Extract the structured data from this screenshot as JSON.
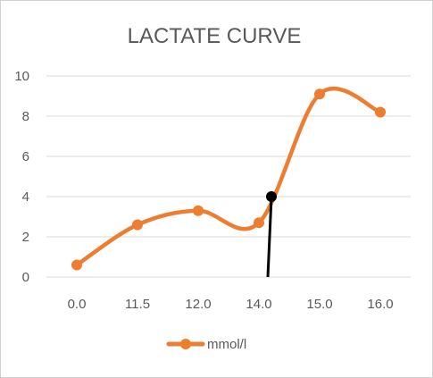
{
  "chart_data": {
    "type": "line",
    "title": "LACTATE CURVE",
    "categories": [
      "0.0",
      "11.5",
      "12.0",
      "14.0",
      "15.0",
      "16.0"
    ],
    "series": [
      {
        "name": "mmol/l",
        "values": [
          0.6,
          2.6,
          3.3,
          2.7,
          9.1,
          8.2
        ],
        "color": "#ED7D31"
      }
    ],
    "yticks": [
      "0",
      "2",
      "4",
      "6",
      "8",
      "10"
    ],
    "ylim": [
      0,
      10
    ],
    "grid": true,
    "legend": "bottom",
    "annotation": {
      "value": 4,
      "color": "#000000"
    }
  }
}
